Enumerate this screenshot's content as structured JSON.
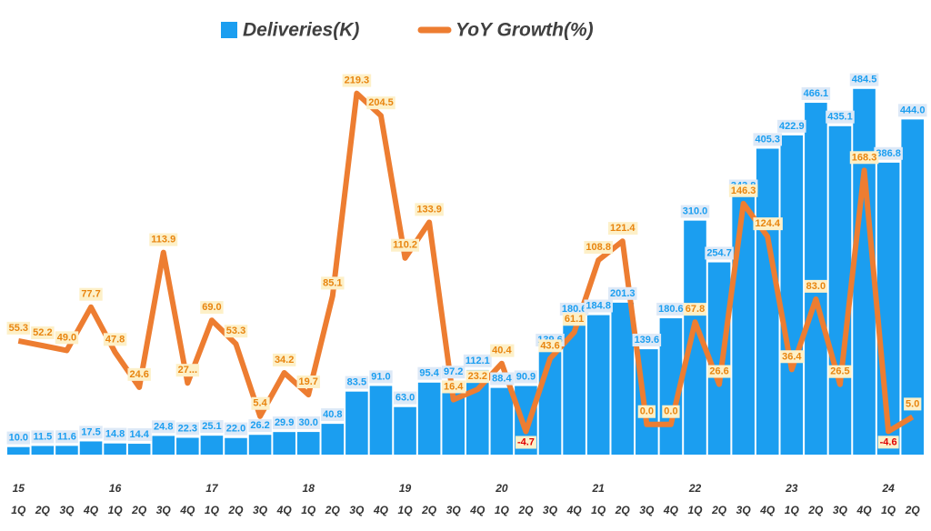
{
  "chart_data": {
    "type": "bar-line",
    "categories": [
      "1Q",
      "2Q",
      "3Q",
      "4Q",
      "1Q",
      "2Q",
      "3Q",
      "4Q",
      "1Q",
      "2Q",
      "3Q",
      "4Q",
      "1Q",
      "2Q",
      "3Q",
      "4Q",
      "1Q",
      "2Q",
      "3Q",
      "4Q",
      "1Q",
      "2Q",
      "3Q",
      "4Q",
      "1Q",
      "2Q",
      "3Q",
      "4Q",
      "1Q",
      "2Q",
      "3Q",
      "4Q",
      "1Q",
      "2Q",
      "3Q",
      "4Q",
      "1Q",
      "2Q"
    ],
    "years": [
      "15",
      "16",
      "17",
      "18",
      "19",
      "20",
      "21",
      "22",
      "23",
      "24"
    ],
    "ylim": [
      0,
      530
    ],
    "y2lim": [
      -20,
      245
    ],
    "series": [
      {
        "name": "Deliveries(K)",
        "type": "bar",
        "color": "#1b9ef0",
        "values": [
          10.0,
          11.5,
          11.6,
          17.5,
          14.8,
          14.4,
          24.8,
          22.3,
          25.1,
          22.0,
          26.2,
          29.9,
          30.0,
          40.8,
          83.5,
          91.0,
          63.0,
          95.4,
          97.2,
          112.1,
          88.4,
          90.9,
          139.6,
          180.6,
          184.8,
          201.3,
          139.6,
          180.6,
          310.0,
          254.7,
          343.8,
          405.3,
          422.9,
          466.1,
          435.1,
          484.5,
          386.8,
          444.0
        ],
        "value_labels": [
          "10.0",
          "11.5",
          "11.6",
          "17.5",
          "14.8",
          "14.4",
          "24.8",
          "22.3",
          "25.1",
          "22.0",
          "26.2",
          "29.9",
          "30.0",
          "40.8",
          "83.5",
          "91.0",
          "63.0",
          "95.4",
          "97.2",
          "112.1",
          "88.4",
          "90.9",
          "139.6",
          "180.6",
          "184.8",
          "201.3",
          "139.6",
          "180.6",
          "310.0",
          "254.7",
          "343.8",
          "405.3",
          "422.9",
          "466.1",
          "435.1",
          "484.5",
          "386.8",
          "444.0"
        ]
      },
      {
        "name": "YoY Growth(%)",
        "type": "line",
        "axis": "y2",
        "color": "#ed7d31",
        "values": [
          55.3,
          52.2,
          49.0,
          77.7,
          47.8,
          24.6,
          113.9,
          27.4,
          69.0,
          53.3,
          5.4,
          34.2,
          19.7,
          85.1,
          219.3,
          204.5,
          110.2,
          133.9,
          16.4,
          23.2,
          40.4,
          -4.7,
          43.6,
          61.1,
          108.8,
          121.4,
          0.0,
          0.0,
          67.8,
          26.6,
          146.3,
          124.4,
          36.4,
          83.0,
          26.5,
          168.3,
          -4.6,
          5.0
        ],
        "value_labels": [
          "55.3",
          "52.2",
          "49.0",
          "77.7",
          "47.8",
          "24.6",
          "113.9",
          "27...",
          "69.0",
          "53.3",
          "5.4",
          "34.2",
          "19.7",
          "85.1",
          "219.3",
          "204.5",
          "110.2",
          "133.9",
          "16.4",
          "23.2",
          "40.4",
          "-4.7",
          "43.6",
          "61.1",
          "108.8",
          "121.4",
          "0.0",
          "0.0",
          "67.8",
          "26.6",
          "146.3",
          "124.4",
          "36.4",
          "83.0",
          "26.5",
          "168.3",
          "-4.6",
          "5.0"
        ]
      }
    ]
  }
}
